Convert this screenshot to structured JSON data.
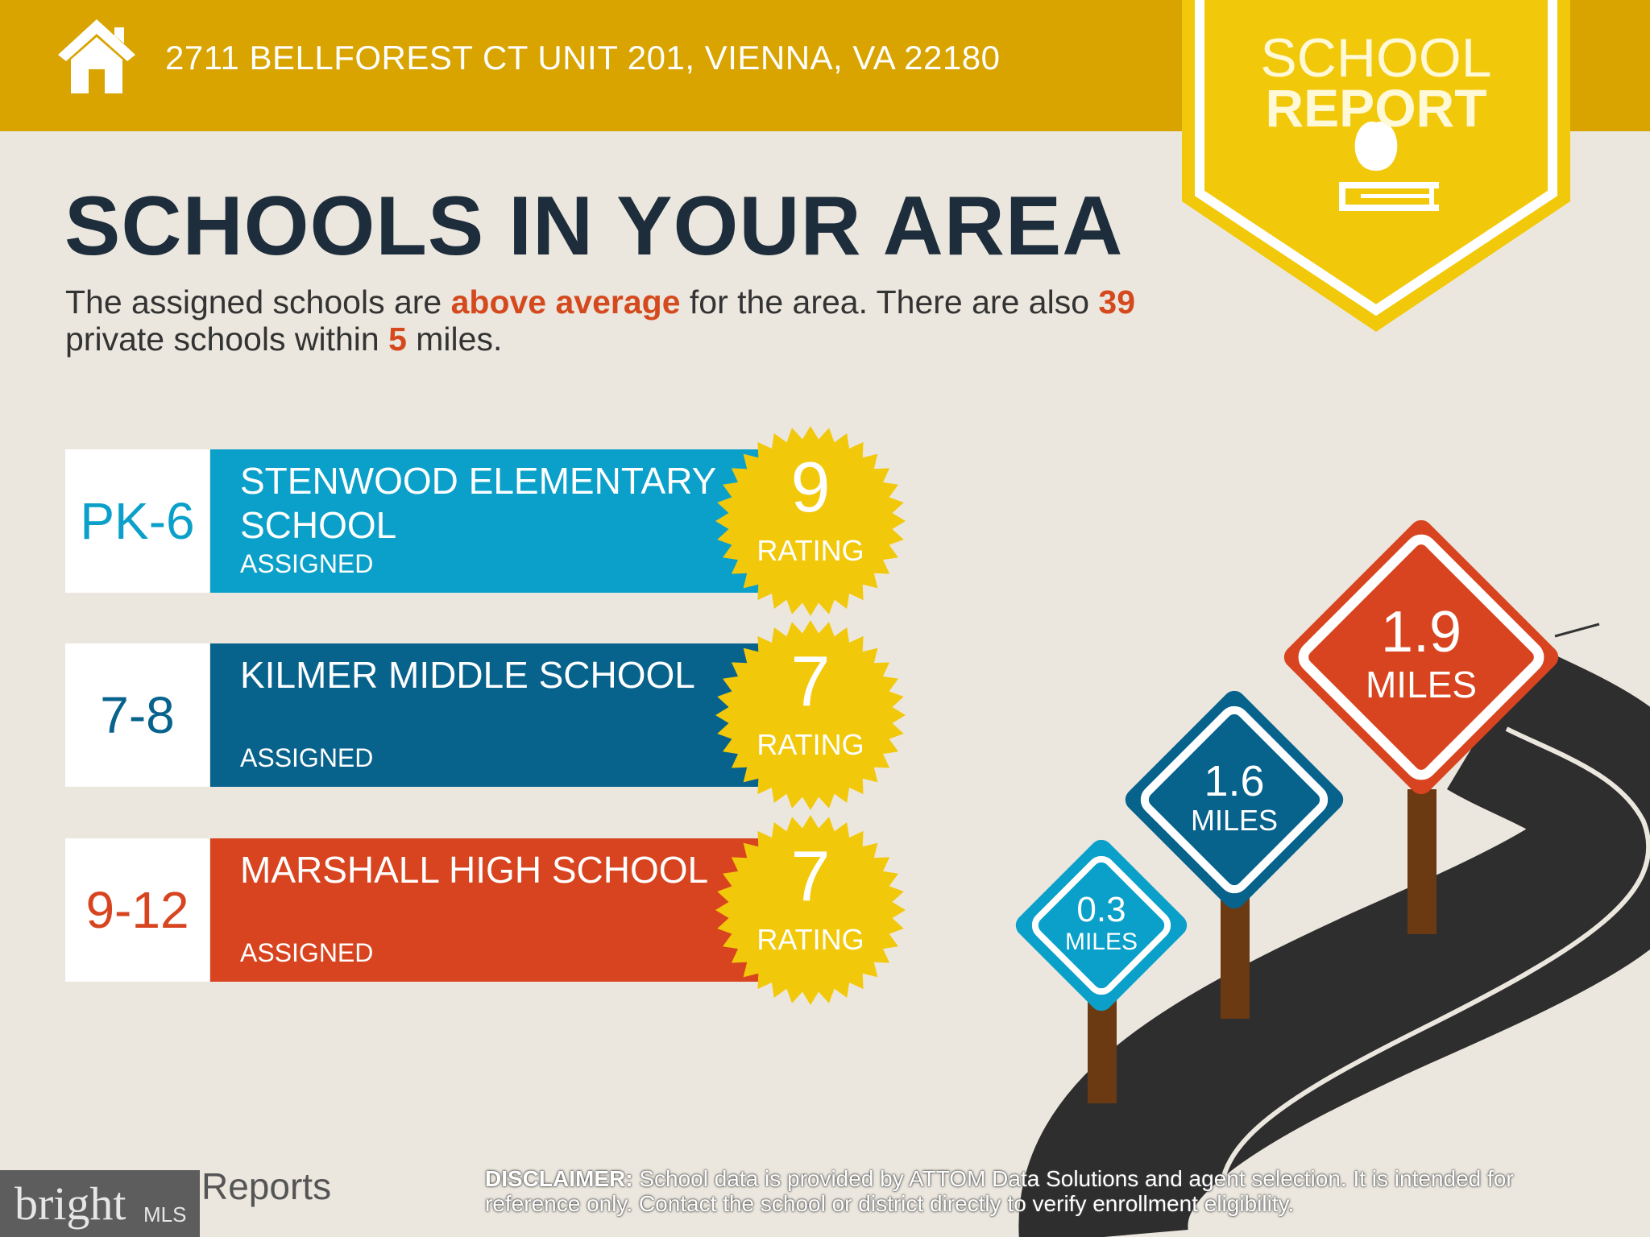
{
  "header": {
    "address": "2711 BELLFOREST CT UNIT 201, VIENNA, VA 22180",
    "icon": "house-icon",
    "color": "#d9a400"
  },
  "badge": {
    "line1": "SCHOOL",
    "line2": "REPORT",
    "icon": "apple-on-book-icon",
    "color": "#f2c80a"
  },
  "title": "SCHOOLS IN YOUR AREA",
  "subtitle": {
    "p1": "The assigned schools are ",
    "h1": "above average",
    "p2": " for the area. There are also ",
    "h2": "39",
    "p3": " private schools within ",
    "h3": "5",
    "p4": " miles."
  },
  "schools": [
    {
      "grades": "PK-6",
      "name": "STENWOOD ELEMENTARY SCHOOL",
      "status": "ASSIGNED",
      "rating": "9",
      "rating_label": "RATING",
      "color": "#0ba0c9",
      "distance": "0.3",
      "distance_unit": "MILES"
    },
    {
      "grades": "7-8",
      "name": "KILMER MIDDLE SCHOOL",
      "status": "ASSIGNED",
      "rating": "7",
      "rating_label": "RATING",
      "color": "#07628c",
      "distance": "1.6",
      "distance_unit": "MILES"
    },
    {
      "grades": "9-12",
      "name": "MARSHALL HIGH SCHOOL",
      "status": "ASSIGNED",
      "rating": "7",
      "rating_label": "RATING",
      "color": "#d8441f",
      "distance": "1.9",
      "distance_unit": "MILES"
    }
  ],
  "footer": {
    "logo_brand": "bright",
    "logo_suffix": "MLS",
    "reports": "Reports",
    "disclaimer_label": "DISCLAIMER:",
    "disclaimer": " School data is provided by ATTOM Data Solutions and agent selection. It is intended for reference only. Contact the school or district directly to verify enrollment eligibility."
  }
}
